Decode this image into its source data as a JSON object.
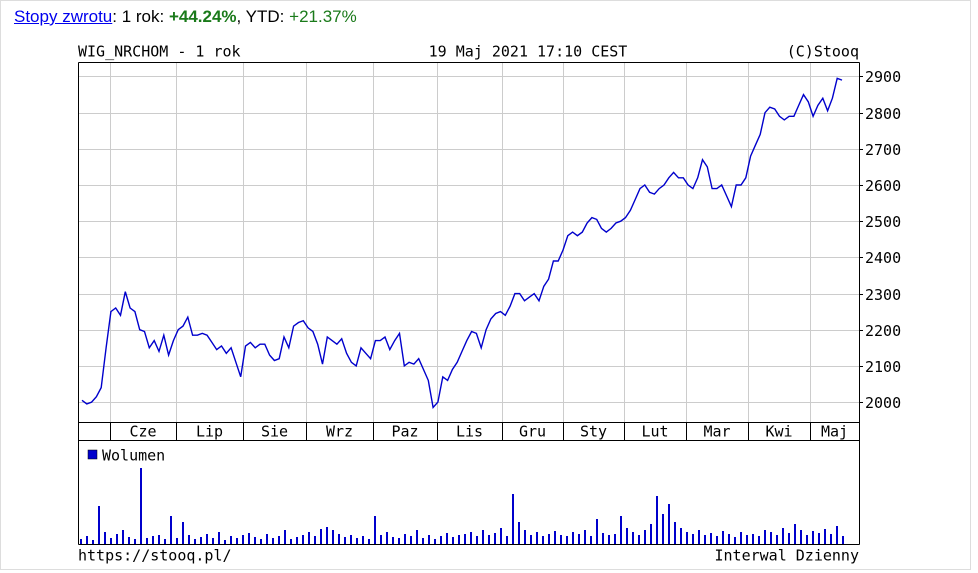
{
  "header": {
    "link": "Stopy zwrotu",
    "period": ": 1 rok: ",
    "return_1y": "+44.24%",
    "ytd_label": ", YTD: ",
    "ytd": "+21.37%"
  },
  "chart_data": {
    "type": "line",
    "title": "WIG_NRCHOM - 1 rok",
    "date": "19 Maj 2021 17:10 CEST",
    "source": "(C)Stooq",
    "month_labels": [
      "Cze",
      "Lip",
      "Sie",
      "Wrz",
      "Paz",
      "Lis",
      "Gru",
      "Sty",
      "Lut",
      "Mar",
      "Kwi",
      "Maj"
    ],
    "color": "#0000cc",
    "values": [
      2005,
      1995,
      2000,
      2015,
      2040,
      2150,
      2250,
      2260,
      2240,
      2305,
      2260,
      2250,
      2200,
      2195,
      2150,
      2170,
      2140,
      2185,
      2130,
      2170,
      2200,
      2210,
      2235,
      2185,
      2185,
      2190,
      2185,
      2165,
      2145,
      2155,
      2135,
      2150,
      2110,
      2070,
      2155,
      2165,
      2150,
      2160,
      2160,
      2130,
      2115,
      2120,
      2180,
      2150,
      2210,
      2220,
      2225,
      2205,
      2195,
      2160,
      2105,
      2180,
      2170,
      2160,
      2175,
      2135,
      2110,
      2100,
      2150,
      2135,
      2120,
      2170,
      2170,
      2180,
      2145,
      2170,
      2190,
      2100,
      2110,
      2105,
      2120,
      2090,
      2060,
      1985,
      2000,
      2070,
      2060,
      2090,
      2110,
      2140,
      2170,
      2195,
      2190,
      2150,
      2200,
      2230,
      2245,
      2250,
      2240,
      2265,
      2300,
      2300,
      2280,
      2290,
      2300,
      2280,
      2320,
      2340,
      2390,
      2390,
      2420,
      2460,
      2470,
      2460,
      2470,
      2495,
      2510,
      2505,
      2480,
      2470,
      2480,
      2495,
      2500,
      2510,
      2530,
      2560,
      2590,
      2600,
      2580,
      2575,
      2590,
      2600,
      2620,
      2635,
      2620,
      2620,
      2600,
      2590,
      2620,
      2670,
      2650,
      2590,
      2590,
      2600,
      2570,
      2540,
      2600,
      2600,
      2620,
      2680,
      2710,
      2740,
      2800,
      2815,
      2810,
      2790,
      2780,
      2790,
      2790,
      2820,
      2850,
      2830,
      2790,
      2820,
      2840,
      2805,
      2840,
      2895,
      2890
    ],
    "ylim": [
      1945,
      2940
    ],
    "yticks": [
      2000,
      2100,
      2200,
      2300,
      2400,
      2500,
      2600,
      2700,
      2800,
      2900
    ],
    "grid": true,
    "volume": {
      "name": "Wolumen",
      "color": "#0000cc",
      "values": [
        5,
        8,
        4,
        38,
        12,
        6,
        10,
        14,
        7,
        5,
        76,
        6,
        8,
        9,
        5,
        28,
        6,
        22,
        9,
        5,
        7,
        10,
        6,
        12,
        4,
        8,
        6,
        9,
        11,
        7,
        5,
        10,
        6,
        8,
        14,
        5,
        7,
        9,
        12,
        8,
        15,
        17,
        14,
        10,
        7,
        9,
        6,
        8,
        5,
        28,
        9,
        12,
        7,
        6,
        10,
        8,
        14,
        6,
        9,
        5,
        8,
        11,
        7,
        9,
        10,
        12,
        8,
        14,
        9,
        11,
        16,
        8,
        50,
        22,
        14,
        9,
        12,
        8,
        10,
        13,
        9,
        8,
        12,
        10,
        14,
        8,
        25,
        11,
        9,
        10,
        28,
        16,
        12,
        9,
        14,
        20,
        48,
        30,
        40,
        22,
        16,
        12,
        10,
        14,
        9,
        11,
        8,
        13,
        10,
        7,
        12,
        9,
        10,
        8,
        14,
        12,
        9,
        16,
        11,
        20,
        14,
        9,
        13,
        11,
        15,
        10,
        18,
        8
      ]
    },
    "footer_left": "https://stooq.pl/",
    "footer_right": "Interwal Dzienny"
  }
}
